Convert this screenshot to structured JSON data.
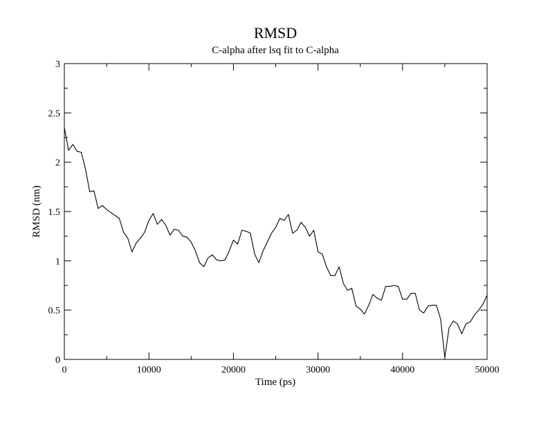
{
  "chart_data": {
    "type": "line",
    "title": "RMSD",
    "subtitle": "C-alpha after lsq fit to C-alpha",
    "xlabel": "Time (ps)",
    "ylabel": "RMSD (nm)",
    "xlim": [
      0,
      50000
    ],
    "ylim": [
      0,
      3
    ],
    "x_ticks": [
      "0",
      "10000",
      "20000",
      "30000",
      "40000",
      "50000"
    ],
    "y_ticks": [
      "0",
      "0.5",
      "1",
      "1.5",
      "2",
      "2.5",
      "3"
    ],
    "grid": false,
    "line_color": "#000000",
    "series": [
      {
        "x": [
          0,
          500,
          1000,
          1500,
          2000,
          2500,
          3000,
          3500,
          4000,
          4500,
          5000,
          5500,
          6000,
          6500,
          7000,
          7500,
          8000,
          8500,
          9000,
          9500,
          10000,
          10500,
          11000,
          11500,
          12000,
          12500,
          13000,
          13500,
          14000,
          14500,
          15000,
          15500,
          16000,
          16500,
          17000,
          17500,
          18000,
          18500,
          19000,
          19500,
          20000,
          20500,
          21000,
          21500,
          22000,
          22500,
          23000,
          23500,
          24000,
          24500,
          25000,
          25500,
          26000,
          26500,
          27000,
          27500,
          28000,
          28500,
          29000,
          29500,
          30000,
          30500,
          31000,
          31500,
          32000,
          32500,
          33000,
          33500,
          34000,
          34500,
          35000,
          35500,
          36000,
          36500,
          37000,
          37500,
          38000,
          38500,
          39000,
          39500,
          40000,
          40500,
          41000,
          41500,
          42000,
          42500,
          43000,
          43500,
          44000,
          44500,
          45000,
          45500,
          46000,
          46500,
          47000,
          47500,
          48000,
          48500,
          49000,
          49500,
          50000
        ],
        "values": [
          2.35,
          2.12,
          2.18,
          2.11,
          2.1,
          1.93,
          1.7,
          1.71,
          1.53,
          1.56,
          1.52,
          1.49,
          1.46,
          1.43,
          1.29,
          1.23,
          1.09,
          1.18,
          1.23,
          1.29,
          1.41,
          1.48,
          1.37,
          1.42,
          1.36,
          1.26,
          1.32,
          1.31,
          1.25,
          1.24,
          1.19,
          1.1,
          0.98,
          0.94,
          1.03,
          1.06,
          1.01,
          1.0,
          1.01,
          1.1,
          1.21,
          1.17,
          1.31,
          1.3,
          1.28,
          1.07,
          0.98,
          1.1,
          1.19,
          1.28,
          1.34,
          1.43,
          1.41,
          1.47,
          1.28,
          1.31,
          1.39,
          1.34,
          1.25,
          1.31,
          1.09,
          1.07,
          0.94,
          0.85,
          0.85,
          0.94,
          0.77,
          0.7,
          0.72,
          0.54,
          0.51,
          0.46,
          0.55,
          0.66,
          0.62,
          0.6,
          0.74,
          0.74,
          0.75,
          0.74,
          0.61,
          0.61,
          0.67,
          0.67,
          0.5,
          0.47,
          0.54,
          0.55,
          0.55,
          0.41,
          0.02,
          0.32,
          0.39,
          0.36,
          0.26,
          0.36,
          0.38,
          0.45,
          0.5,
          0.56,
          0.65
        ]
      }
    ]
  }
}
